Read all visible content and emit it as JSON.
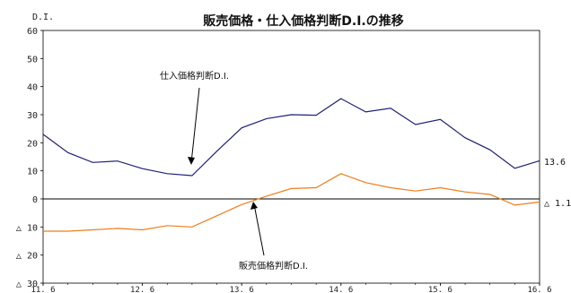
{
  "chart_data": {
    "type": "line",
    "title": "販売価格・仕入価格判断D.I.の推移",
    "ylabel": "D.I.",
    "xlabel": "",
    "ylim": [
      -30,
      60
    ],
    "yticks": [
      {
        "value": 60,
        "label": "60"
      },
      {
        "value": 50,
        "label": "50"
      },
      {
        "value": 40,
        "label": "40"
      },
      {
        "value": 30,
        "label": "30"
      },
      {
        "value": 20,
        "label": "20"
      },
      {
        "value": 10,
        "label": "10"
      },
      {
        "value": 0,
        "label": "0"
      },
      {
        "value": -10,
        "label": "△ 10"
      },
      {
        "value": -20,
        "label": "△ 20"
      },
      {
        "value": -30,
        "label": "△ 30"
      }
    ],
    "xticks": [
      {
        "index": 0,
        "label": "11. 6"
      },
      {
        "index": 4,
        "label": "12. 6"
      },
      {
        "index": 8,
        "label": "13. 6"
      },
      {
        "index": 12,
        "label": "14. 6"
      },
      {
        "index": 16,
        "label": "15. 6"
      },
      {
        "index": 20,
        "label": "16. 6"
      }
    ],
    "series": [
      {
        "name": "仕入価格判断D.I.",
        "color": "#1f1f7a",
        "values": [
          23.0,
          16.5,
          13.0,
          13.5,
          10.8,
          9.0,
          8.3,
          17.0,
          25.3,
          28.6,
          30.0,
          29.8,
          35.7,
          31.0,
          32.3,
          26.5,
          28.3,
          21.8,
          17.5,
          10.9,
          13.6
        ],
        "end_label": "13.6",
        "annotation": "仕入価格判断D.I."
      },
      {
        "name": "販売価格判断D.I.",
        "color": "#f07d1a",
        "values": [
          -11.5,
          -11.5,
          -11.0,
          -10.5,
          -11.0,
          -9.5,
          -10.0,
          -6.0,
          -2.0,
          1.0,
          3.7,
          4.0,
          9.0,
          5.8,
          4.0,
          2.8,
          4.0,
          2.5,
          1.6,
          -2.2,
          -1.1
        ],
        "end_label": "△ 1.1",
        "annotation": "販売価格判断D.I."
      }
    ],
    "grid": false,
    "zero_line": true
  }
}
